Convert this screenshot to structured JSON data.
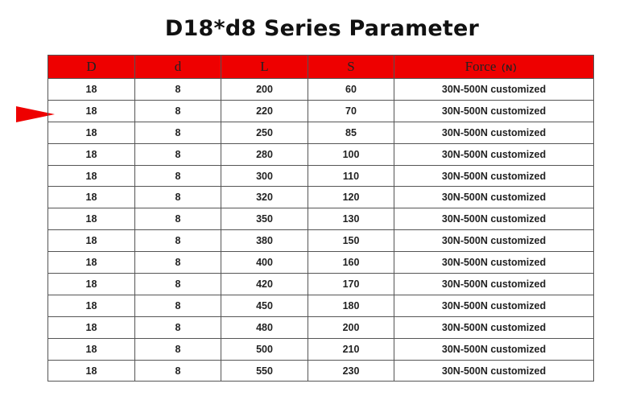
{
  "title": "D18*d8 Series Parameter",
  "colors": {
    "header_bg": "#ee0000",
    "arrow": "#ee0000"
  },
  "arrow_icon": "red-triangle-pointer-right",
  "table": {
    "columns": [
      {
        "label": "D",
        "unit": ""
      },
      {
        "label": "d",
        "unit": ""
      },
      {
        "label": "L",
        "unit": ""
      },
      {
        "label": "S",
        "unit": ""
      },
      {
        "label": "Force",
        "unit": "（N）"
      }
    ],
    "rows": [
      [
        "18",
        "8",
        "200",
        "60",
        "30N-500N customized"
      ],
      [
        "18",
        "8",
        "220",
        "70",
        "30N-500N customized"
      ],
      [
        "18",
        "8",
        "250",
        "85",
        "30N-500N customized"
      ],
      [
        "18",
        "8",
        "280",
        "100",
        "30N-500N customized"
      ],
      [
        "18",
        "8",
        "300",
        "110",
        "30N-500N customized"
      ],
      [
        "18",
        "8",
        "320",
        "120",
        "30N-500N customized"
      ],
      [
        "18",
        "8",
        "350",
        "130",
        "30N-500N customized"
      ],
      [
        "18",
        "8",
        "380",
        "150",
        "30N-500N customized"
      ],
      [
        "18",
        "8",
        "400",
        "160",
        "30N-500N customized"
      ],
      [
        "18",
        "8",
        "420",
        "170",
        "30N-500N customized"
      ],
      [
        "18",
        "8",
        "450",
        "180",
        "30N-500N customized"
      ],
      [
        "18",
        "8",
        "480",
        "200",
        "30N-500N customized"
      ],
      [
        "18",
        "8",
        "500",
        "210",
        "30N-500N customized"
      ],
      [
        "18",
        "8",
        "550",
        "230",
        "30N-500N customized"
      ]
    ]
  }
}
